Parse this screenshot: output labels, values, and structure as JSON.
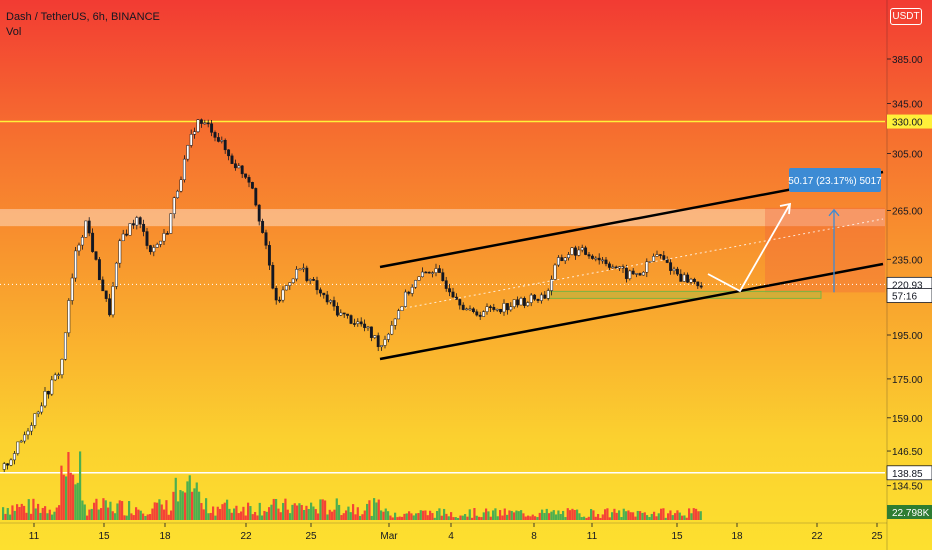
{
  "legend": {
    "title": "Dash / TetherUS, 6h, BINANCE",
    "indicator": "Vol"
  },
  "currency_label": "USDT",
  "chart_data": {
    "type": "candlestick",
    "y_axis": {
      "ticks": [
        "385.00",
        "345.00",
        "305.00",
        "265.00",
        "235.00",
        "195.00",
        "175.00",
        "159.00",
        "146.50",
        "134.50"
      ],
      "tick_values": [
        385,
        345,
        305,
        265,
        235,
        195,
        175,
        159,
        146.5,
        134.5
      ],
      "scale": "log"
    },
    "x_axis": {
      "ticks": [
        "11",
        "15",
        "18",
        "22",
        "25",
        "Mar",
        "4",
        "8",
        "11",
        "15",
        "18",
        "22",
        "25"
      ]
    },
    "price_labels": [
      {
        "label": "330.00",
        "value": 330,
        "style": "yellow"
      },
      {
        "label": "220.93",
        "value": 220.93,
        "style": "current"
      },
      {
        "label": "57:16",
        "value": 216,
        "style": "countdown"
      },
      {
        "label": "138.85",
        "value": 138.85,
        "style": "white"
      },
      {
        "label": "22.798K",
        "value": 22798,
        "style": "volume"
      }
    ],
    "horizontal_levels": [
      {
        "value": 330,
        "color": "#fff03a"
      },
      {
        "value": 138.85,
        "color": "#ffffff"
      }
    ],
    "resistance_zone": [
      255,
      266
    ],
    "measurement": {
      "label": "50.17 (23.17%) 5017",
      "from": 216.6,
      "to": 266.8
    },
    "colors": {
      "up": "#ffffff",
      "down": "#131722",
      "volume_up": "#4caf50",
      "volume_down": "#f44336",
      "current_price": "#ffffff",
      "measure": "#3d8bd4"
    }
  }
}
